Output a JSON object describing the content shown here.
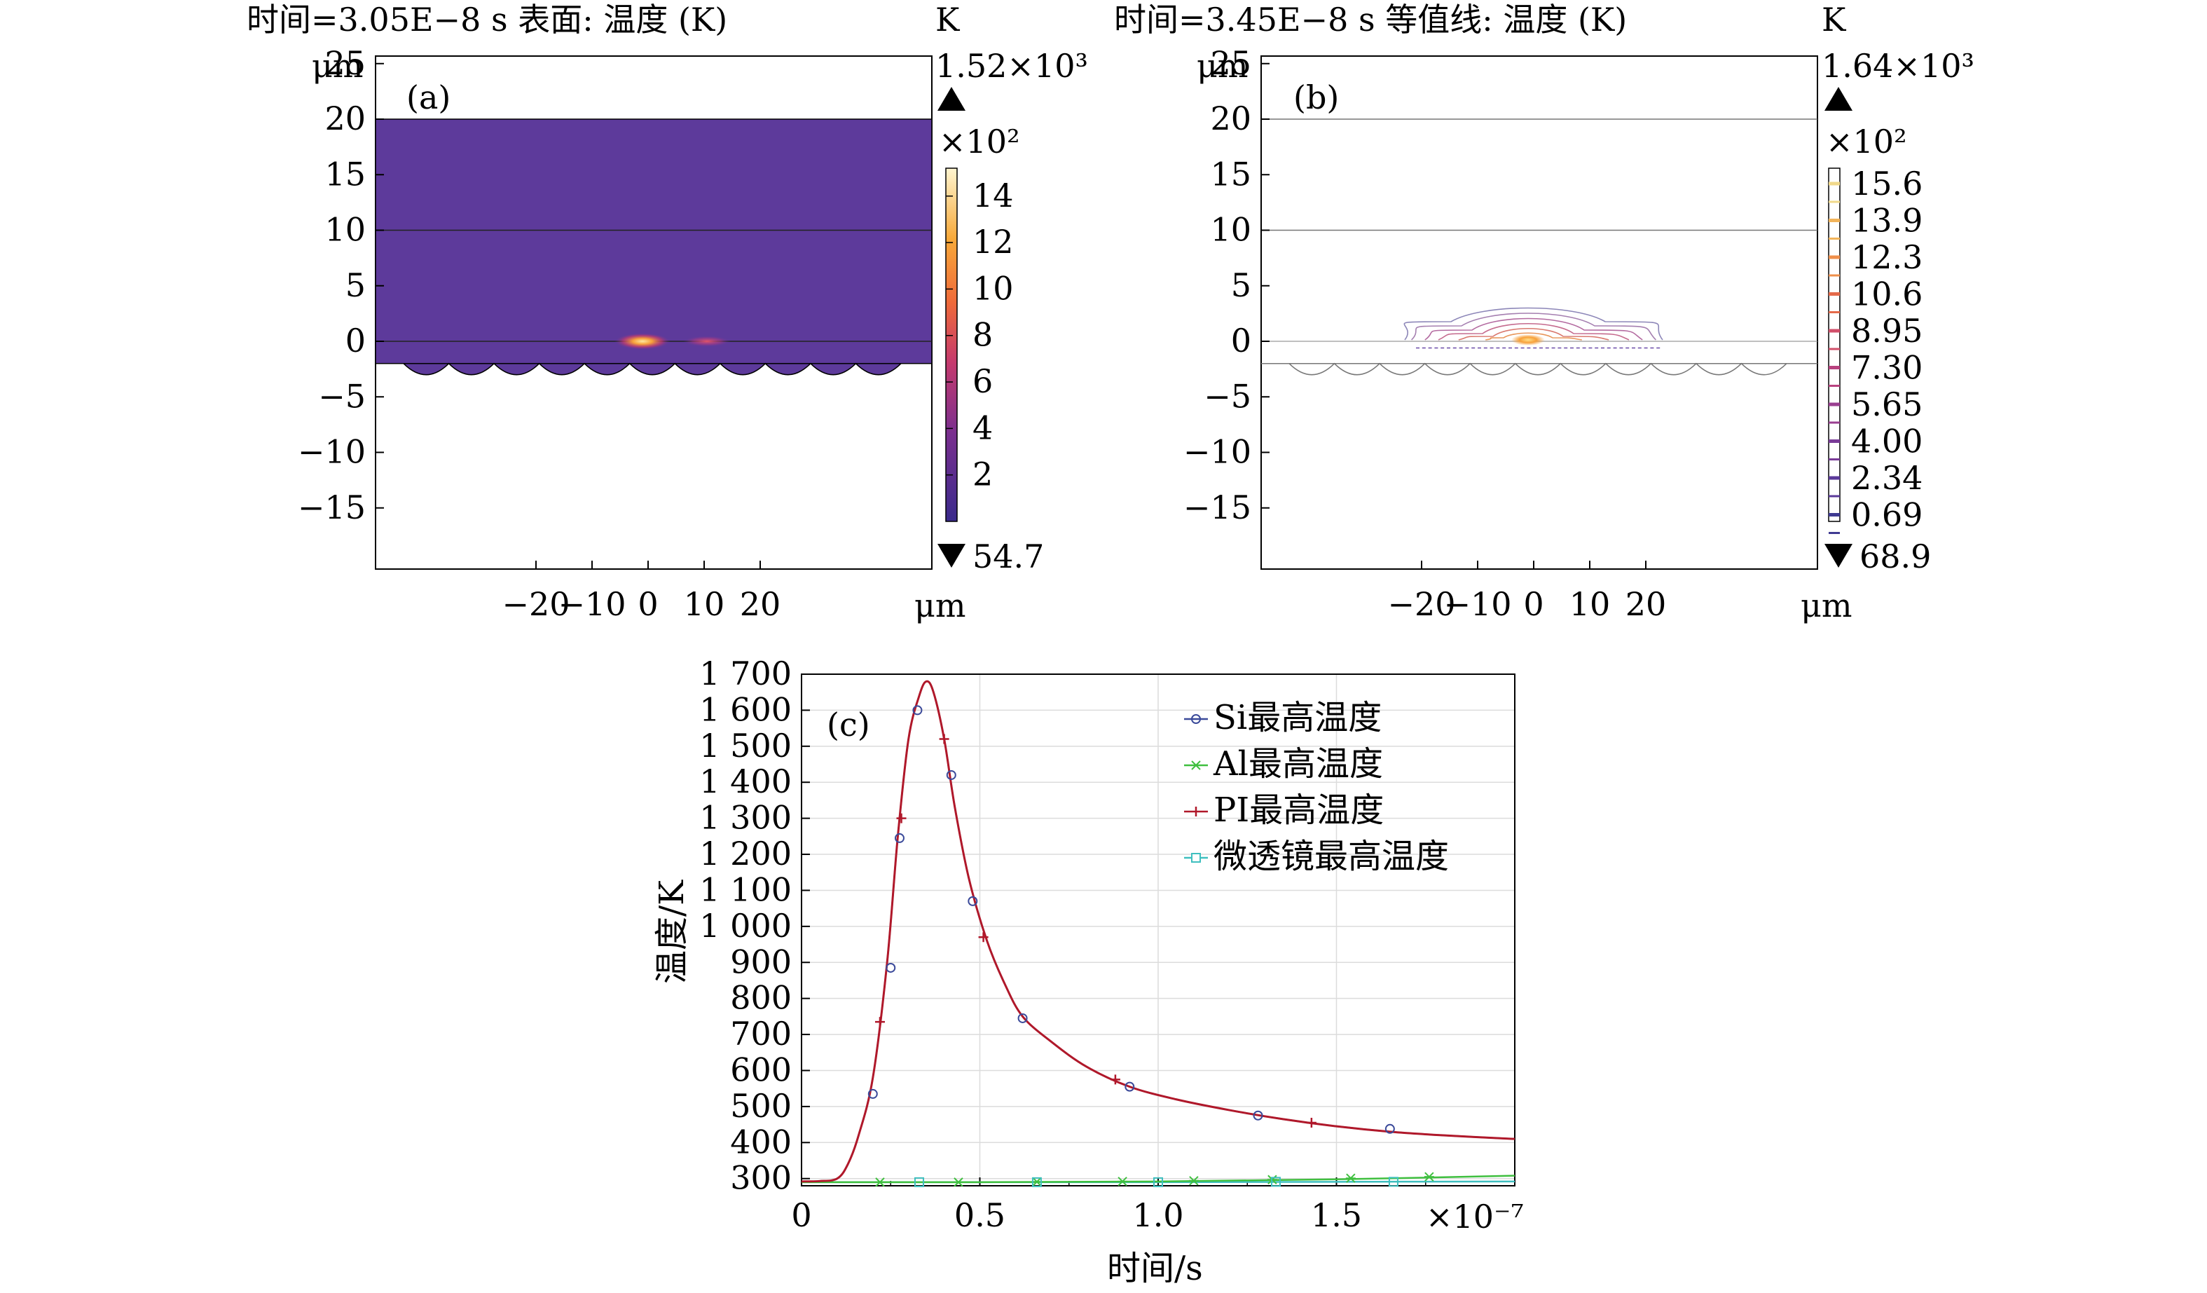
{
  "panel_a": {
    "title": "时间=3.05E−8 s   表面: 温度 (K)",
    "label": "(a)",
    "y_unit": "μm",
    "x_unit": "μm",
    "y_ticks": [
      "25",
      "20",
      "15",
      "10",
      "5",
      "0",
      "−5",
      "−10",
      "−15"
    ],
    "x_ticks": [
      "−20",
      "−10",
      "0",
      "10",
      "20"
    ],
    "colorbar_unit": "K",
    "colorbar_max": "1.52×10³",
    "colorbar_min": "54.7",
    "colorbar_scale": "×10²",
    "colorbar_ticks": [
      "14",
      "12",
      "10",
      "8",
      "6",
      "4",
      "2"
    ]
  },
  "panel_b": {
    "title": "时间=3.45E−8 s   等值线: 温度 (K)",
    "label": "(b)",
    "y_unit": "μm",
    "x_unit": "μm",
    "y_ticks": [
      "25",
      "20",
      "15",
      "10",
      "5",
      "0",
      "−5",
      "−10",
      "−15"
    ],
    "x_ticks": [
      "−20",
      "−10",
      "0",
      "10",
      "20"
    ],
    "colorbar_unit": "K",
    "colorbar_max": "1.64×10³",
    "colorbar_min": "68.9",
    "colorbar_scale": "×10²",
    "colorbar_ticks": [
      "15.6",
      "13.9",
      "12.3",
      "10.6",
      "8.95",
      "7.30",
      "5.65",
      "4.00",
      "2.34",
      "0.69"
    ]
  },
  "colors": {
    "domain_fill": "#5d3a9b",
    "si": "#3b4a9a",
    "al": "#3fbf3f",
    "pi": "#b0182a",
    "lens": "#3fbfbf"
  },
  "chart_data": {
    "type": "line",
    "label": "(c)",
    "xlabel": "时间/s",
    "ylabel": "温度/K",
    "x_multiplier": "×10⁻⁷",
    "xlim": [
      0,
      2.0
    ],
    "ylim": [
      280,
      1700
    ],
    "x_ticks": [
      "0",
      "0.5",
      "1.0",
      "1.5"
    ],
    "y_ticks": [
      "1 700",
      "1 600",
      "1 500",
      "1 400",
      "1 300",
      "1 200",
      "1 100",
      "1 000",
      "900",
      "800",
      "700",
      "600",
      "500",
      "400",
      "300"
    ],
    "grid": true,
    "legend_position": "top-right",
    "series": [
      {
        "name": "Si最高温度",
        "x": [
          0,
          0.05,
          0.1,
          0.13,
          0.16,
          0.2,
          0.24,
          0.27,
          0.3,
          0.33,
          0.35,
          0.37,
          0.4,
          0.43,
          0.47,
          0.52,
          0.57,
          0.62,
          0.7,
          0.8,
          0.92,
          1.05,
          1.2,
          1.35,
          1.5,
          1.65,
          1.8,
          2.0
        ],
        "y": [
          292,
          293,
          300,
          340,
          420,
          580,
          900,
          1250,
          1520,
          1640,
          1680,
          1650,
          1520,
          1330,
          1130,
          960,
          840,
          750,
          680,
          610,
          555,
          520,
          490,
          465,
          445,
          430,
          420,
          410
        ]
      },
      {
        "name": "Al最高温度",
        "x": [
          0,
          0.5,
          1.0,
          1.5,
          2.0
        ],
        "y": [
          290,
          290,
          292,
          298,
          308
        ]
      },
      {
        "name": "PI最高温度",
        "x": [
          0,
          0.05,
          0.1,
          0.13,
          0.16,
          0.2,
          0.24,
          0.27,
          0.3,
          0.33,
          0.35,
          0.37,
          0.4,
          0.43,
          0.47,
          0.52,
          0.57,
          0.62,
          0.7,
          0.8,
          0.92,
          1.05,
          1.2,
          1.35,
          1.5,
          1.65,
          1.8,
          2.0
        ],
        "y": [
          292,
          293,
          300,
          340,
          420,
          580,
          900,
          1250,
          1520,
          1640,
          1680,
          1650,
          1520,
          1330,
          1130,
          960,
          840,
          750,
          680,
          610,
          555,
          520,
          490,
          465,
          445,
          430,
          420,
          410
        ]
      },
      {
        "name": "微透镜最高温度",
        "x": [
          0,
          0.5,
          1.0,
          1.5,
          2.0
        ],
        "y": [
          290,
          290,
          290,
          291,
          292
        ]
      }
    ],
    "markers": {
      "si": [
        [
          0.2,
          535
        ],
        [
          0.25,
          885
        ],
        [
          0.275,
          1245
        ],
        [
          0.325,
          1600
        ],
        [
          0.42,
          1420
        ],
        [
          0.48,
          1070
        ],
        [
          0.62,
          745
        ],
        [
          0.92,
          555
        ],
        [
          1.28,
          475
        ],
        [
          1.65,
          438
        ]
      ],
      "pi": [
        [
          0.22,
          735
        ],
        [
          0.28,
          1300
        ],
        [
          0.4,
          1520
        ],
        [
          0.51,
          970
        ],
        [
          0.88,
          575
        ],
        [
          1.43,
          455
        ]
      ],
      "al": [
        [
          0.22,
          290
        ],
        [
          0.44,
          290
        ],
        [
          0.66,
          291
        ],
        [
          0.9,
          292
        ],
        [
          1.1,
          294
        ],
        [
          1.32,
          297
        ],
        [
          1.54,
          301
        ],
        [
          1.76,
          305
        ]
      ],
      "lens": [
        [
          0.33,
          290
        ],
        [
          0.66,
          290
        ],
        [
          1.0,
          290
        ],
        [
          1.33,
          291
        ],
        [
          1.66,
          291
        ]
      ]
    }
  }
}
